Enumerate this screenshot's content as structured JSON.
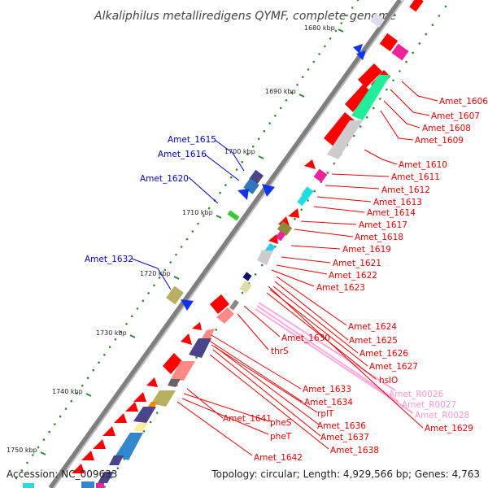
{
  "title": "Alkaliphilus metalliredigens QYMF, complete genome",
  "accession": "Accession: NC_009633",
  "topology": "Topology: circular; Length: 4,929,566 bp; Genes: 4,763",
  "colors": {
    "backbone": "#8a8a8a",
    "cds": "#ff0000",
    "forward_label": "#0000cc",
    "reverse_label": "#ee0000",
    "rna_label": "#ff99cc",
    "tick": "#2e8b2e"
  },
  "scale_ticks": [
    "1680 kbp",
    "1690 kbp",
    "1700 kbp",
    "1710 kbp",
    "1720 kbp",
    "1730 kbp",
    "1740 kbp",
    "1750 kbp"
  ],
  "forward_labels": [
    "Amet_1615",
    "Amet_1616",
    "Amet_1620",
    "Amet_1632"
  ],
  "reverse_labels": [
    "Amet_1606",
    "Amet_1607",
    "Amet_1608",
    "Amet_1609",
    "Amet_1610",
    "Amet_1611",
    "Amet_1612",
    "Amet_1613",
    "Amet_1614",
    "Amet_1617",
    "Amet_1618",
    "Amet_1619",
    "Amet_1621",
    "Amet_1622",
    "Amet_1623",
    "Amet_1624",
    "Amet_1625",
    "Amet_1626",
    "Amet_1627",
    "hslO",
    "Amet_1630",
    "thrS",
    "Amet_1633",
    "Amet_1634",
    "rplT",
    "Amet_1636",
    "Amet_1637",
    "Amet_1638",
    "Amet_1641",
    "pheS",
    "pheT",
    "Amet_1642",
    "Amet_1629"
  ],
  "rna_labels": [
    "Amet_R0026",
    "Amet_R0027",
    "Amet_R0028"
  ]
}
